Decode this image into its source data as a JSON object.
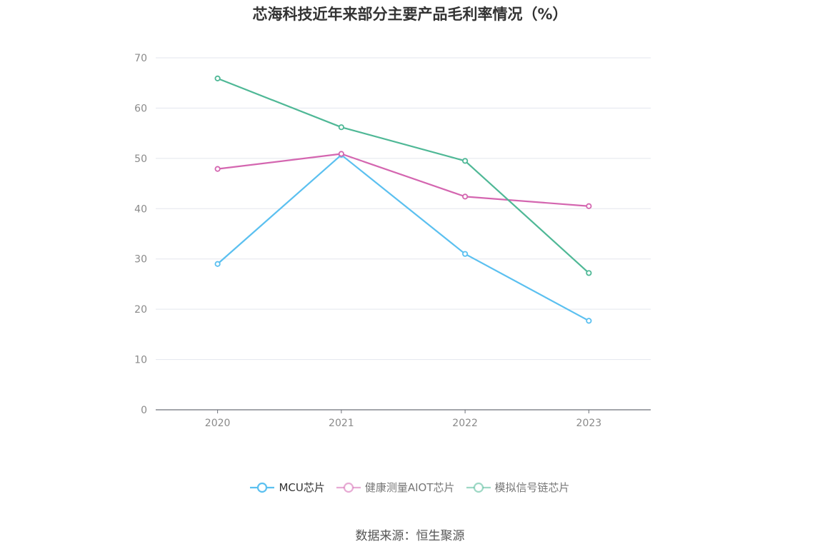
{
  "chart_data": {
    "type": "line",
    "title": "芯海科技近年来部分主要产品毛利率情况（%）",
    "categories": [
      "2020",
      "2021",
      "2022",
      "2023"
    ],
    "ylim": [
      0,
      70
    ],
    "yticks": [
      "0",
      "10",
      "20",
      "30",
      "40",
      "50",
      "60",
      "70"
    ],
    "grid": true,
    "legend_position": "bottom",
    "series": [
      {
        "name": "MCU芯片",
        "values": [
          29.0,
          50.7,
          31.0,
          17.7
        ],
        "color": "#5bc0f0"
      },
      {
        "name": "健康测量AIOT芯片",
        "values": [
          47.9,
          50.9,
          42.4,
          40.5
        ],
        "color": "#d466b0"
      },
      {
        "name": "模拟信号链芯片",
        "values": [
          65.9,
          56.2,
          49.5,
          27.2
        ],
        "color": "#4fb896"
      }
    ]
  },
  "source": "数据来源：恒生聚源"
}
